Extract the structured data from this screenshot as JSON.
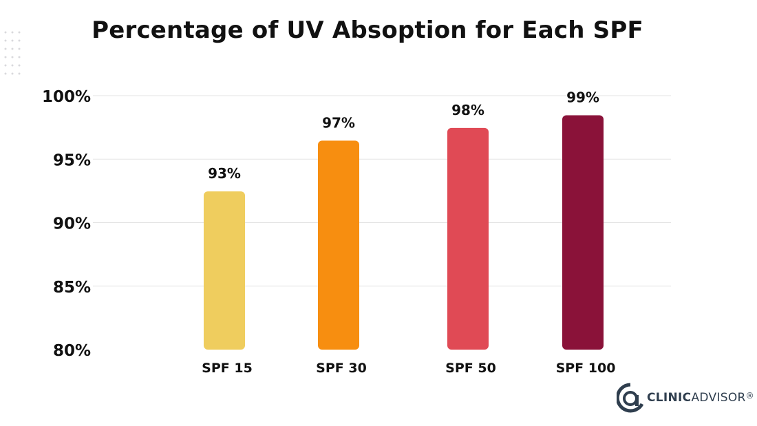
{
  "title": "Percentage of UV Absoption for Each SPF",
  "brand": {
    "name_bold": "CLINIC",
    "name_light": "ADVISOR",
    "registered": "®",
    "color": "#2f3e4e"
  },
  "chart_data": {
    "type": "bar",
    "title": "Percentage of UV Absoption for Each SPF",
    "xlabel": "",
    "ylabel": "",
    "categories": [
      "SPF 15",
      "SPF 30",
      "SPF 50",
      "SPF 100"
    ],
    "values": [
      93,
      97,
      98,
      99
    ],
    "value_labels": [
      "93%",
      "97%",
      "98%",
      "99%"
    ],
    "bar_colors": [
      "#efcd5e",
      "#f78e10",
      "#e04a55",
      "#8a1239"
    ],
    "ylim": [
      80,
      100
    ],
    "yticks": [
      80,
      85,
      90,
      95,
      100
    ],
    "ytick_labels": [
      "80%",
      "85%",
      "90%",
      "95%",
      "100%"
    ],
    "grid": true,
    "legend": "none"
  }
}
